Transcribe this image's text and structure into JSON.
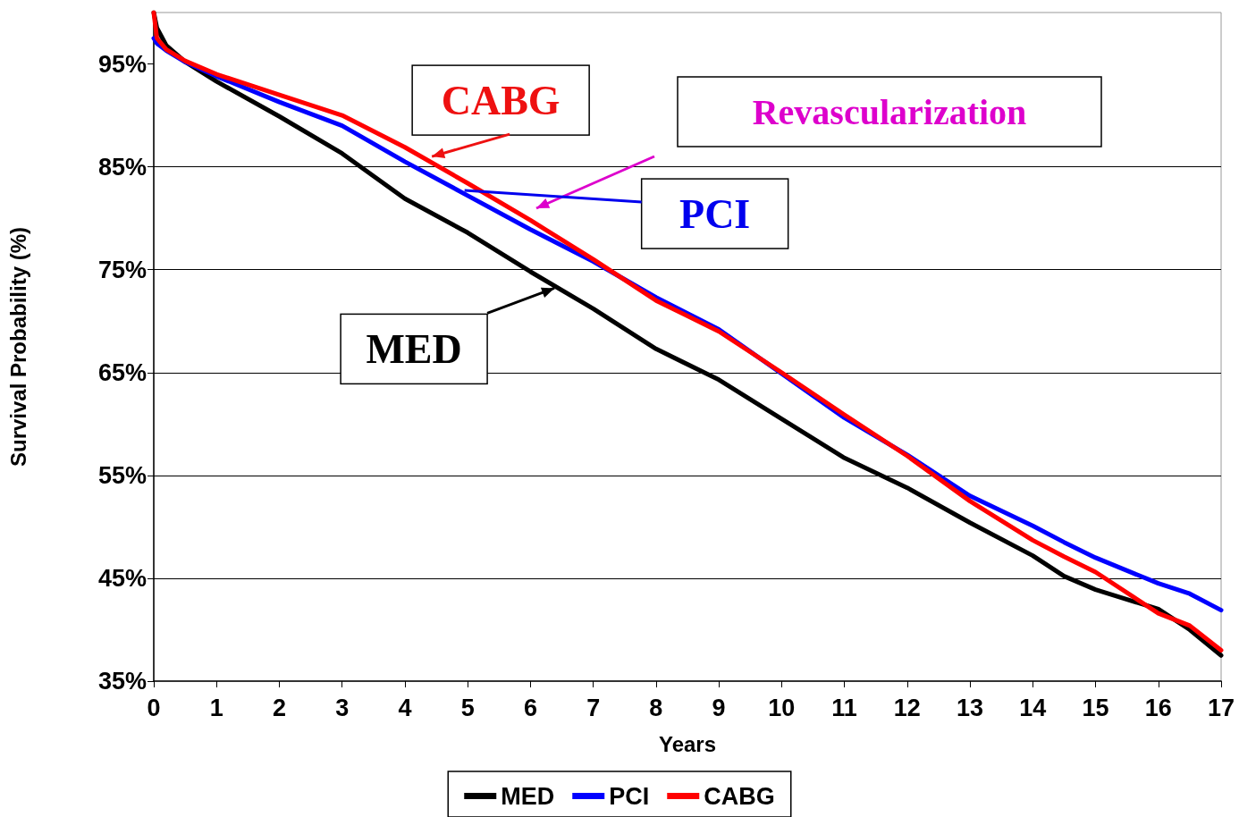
{
  "chart_data": {
    "type": "line",
    "xlabel": "Years",
    "ylabel": "Survival Probability (%)",
    "x": [
      0,
      0.05,
      0.2,
      0.5,
      1,
      2,
      3,
      4,
      5,
      6,
      7,
      8,
      9,
      10,
      11,
      12,
      13,
      14,
      14.5,
      15,
      16,
      16.5,
      17
    ],
    "series": [
      {
        "name": "MED",
        "color": "#000000",
        "values": [
          100,
          98.5,
          96.8,
          95.2,
          93.3,
          89.9,
          86.3,
          81.9,
          78.6,
          74.8,
          71.2,
          67.3,
          64.3,
          60.5,
          56.7,
          53.8,
          50.4,
          47.2,
          45.2,
          43.9,
          42.0,
          40.0,
          37.5
        ]
      },
      {
        "name": "PCI",
        "color": "#0000ff",
        "values": [
          97.5,
          97,
          96.3,
          95.2,
          93.8,
          91.3,
          89.0,
          85.5,
          82.2,
          78.9,
          75.8,
          72.3,
          69.2,
          64.9,
          60.6,
          57.0,
          53.0,
          50.1,
          48.5,
          47.0,
          44.5,
          43.5,
          41.9
        ]
      },
      {
        "name": "CABG",
        "color": "#ff0000",
        "values": [
          100,
          97.5,
          96.4,
          95.3,
          94.0,
          92.0,
          90.0,
          86.9,
          83.4,
          79.8,
          76.0,
          72.0,
          69.0,
          65.0,
          60.9,
          56.9,
          52.5,
          48.7,
          47.1,
          45.6,
          41.6,
          40.4,
          38.0
        ]
      }
    ],
    "xlim": [
      0,
      17
    ],
    "xticks": [
      0,
      1,
      2,
      3,
      4,
      5,
      6,
      7,
      8,
      9,
      10,
      11,
      12,
      13,
      14,
      15,
      16,
      17
    ],
    "ylim": [
      35,
      100
    ],
    "yticks": [
      {
        "value": 35,
        "label": "35%"
      },
      {
        "value": 45,
        "label": "45%"
      },
      {
        "value": 55,
        "label": "55%"
      },
      {
        "value": 65,
        "label": "65%"
      },
      {
        "value": 75,
        "label": "75%"
      },
      {
        "value": 85,
        "label": "85%"
      },
      {
        "value": 95,
        "label": "95%"
      }
    ],
    "grid": "y",
    "legend": "bottom",
    "marker": "none",
    "line_style": "solid",
    "annotations": [
      {
        "text": "CABG",
        "x": 4.43,
        "y": 86.0
      },
      "Revascularization",
      {
        "text": "PCI",
        "x": 4.95,
        "y": 82.7
      },
      {
        "text": "MED",
        "x": 6.38,
        "y": 73.2
      }
    ]
  }
}
